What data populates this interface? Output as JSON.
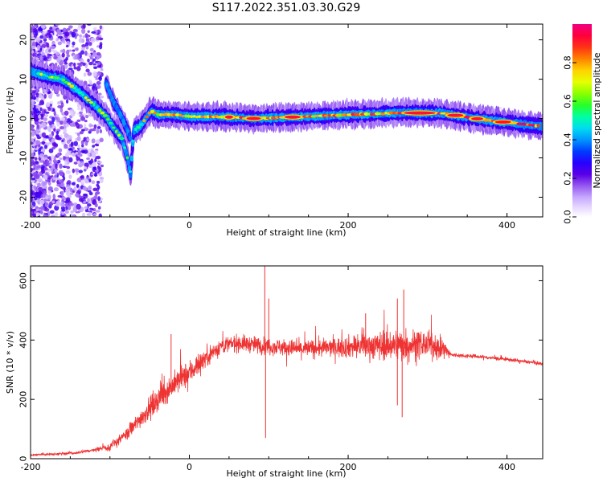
{
  "title": "S117.2022.351.03.30.G29",
  "chart_data": [
    {
      "type": "heatmap",
      "xlabel": "Height of straight line (km)",
      "ylabel": "Frequency (Hz)",
      "xlim": [
        -200,
        445
      ],
      "ylim": [
        -25,
        24
      ],
      "xticks": [
        -200,
        0,
        200,
        400
      ],
      "yticks": [
        -20,
        -10,
        0,
        10,
        20
      ],
      "colorbar": {
        "label": "Normalized spectral amplitude",
        "range": [
          0,
          1
        ],
        "ticks": [
          0.0,
          0.2,
          0.4,
          0.6,
          0.8
        ],
        "colors": [
          "#ffffff",
          "#e8d8ff",
          "#c8a8ff",
          "#8a2be2",
          "#4b00e0",
          "#0000ff",
          "#0080ff",
          "#00e0ff",
          "#00ff80",
          "#40ff00",
          "#c0ff00",
          "#ffff00",
          "#ffa000",
          "#ff4000",
          "#ff0040",
          "#ff0080"
        ]
      },
      "ridge_center": [
        [
          -200,
          12
        ],
        [
          -175,
          10.5
        ],
        [
          -160,
          10
        ],
        [
          -140,
          7
        ],
        [
          -120,
          3.5
        ],
        [
          -105,
          0.5
        ],
        [
          -95,
          -2.5
        ],
        [
          -85,
          -5
        ],
        [
          -78,
          -10
        ],
        [
          -74,
          -14
        ],
        [
          -70,
          -3
        ],
        [
          -62,
          -2
        ],
        [
          -55,
          0
        ],
        [
          -48,
          2
        ],
        [
          -40,
          1
        ],
        [
          -20,
          1
        ],
        [
          0,
          0.5
        ],
        [
          40,
          0.5
        ],
        [
          80,
          0
        ],
        [
          120,
          0.3
        ],
        [
          160,
          0.6
        ],
        [
          200,
          1
        ],
        [
          240,
          1.2
        ],
        [
          270,
          1.5
        ],
        [
          320,
          1.3
        ],
        [
          360,
          0
        ],
        [
          400,
          -1
        ],
        [
          445,
          -2
        ]
      ],
      "secondary_branch": [
        [
          -105,
          9
        ],
        [
          -95,
          4
        ],
        [
          -88,
          1.5
        ],
        [
          -80,
          -2
        ],
        [
          -74,
          -5
        ]
      ]
    },
    {
      "type": "line",
      "xlabel": "Height of straight line (km)",
      "ylabel": "SNR (10 * v/v)",
      "xlim": [
        -200,
        445
      ],
      "ylim": [
        0,
        650
      ],
      "xticks": [
        -200,
        0,
        200,
        400
      ],
      "yticks": [
        0,
        200,
        400,
        600
      ],
      "line_color": "#ee3333",
      "envelope": [
        [
          -200,
          12
        ],
        [
          -140,
          20
        ],
        [
          -100,
          40
        ],
        [
          -80,
          80
        ],
        [
          -60,
          140
        ],
        [
          -40,
          200
        ],
        [
          -20,
          250
        ],
        [
          0,
          290
        ],
        [
          20,
          340
        ],
        [
          40,
          380
        ],
        [
          60,
          390
        ],
        [
          80,
          385
        ],
        [
          100,
          380
        ],
        [
          140,
          370
        ],
        [
          180,
          375
        ],
        [
          220,
          380
        ],
        [
          260,
          385
        ],
        [
          300,
          385
        ],
        [
          320,
          370
        ],
        [
          330,
          350
        ],
        [
          360,
          345
        ],
        [
          400,
          335
        ],
        [
          445,
          320
        ]
      ],
      "noise_amplitude": [
        [
          -200,
          5
        ],
        [
          -120,
          8
        ],
        [
          -80,
          30
        ],
        [
          -40,
          60
        ],
        [
          0,
          60
        ],
        [
          40,
          40
        ],
        [
          100,
          40
        ],
        [
          180,
          45
        ],
        [
          240,
          70
        ],
        [
          270,
          80
        ],
        [
          320,
          50
        ],
        [
          330,
          10
        ],
        [
          445,
          8
        ]
      ],
      "spikes": [
        [
          -23,
          420
        ],
        [
          95,
          650
        ],
        [
          96,
          70
        ],
        [
          100,
          540
        ],
        [
          110,
          360
        ],
        [
          222,
          490
        ],
        [
          262,
          540
        ],
        [
          268,
          140
        ],
        [
          270,
          570
        ],
        [
          262,
          180
        ]
      ]
    }
  ]
}
